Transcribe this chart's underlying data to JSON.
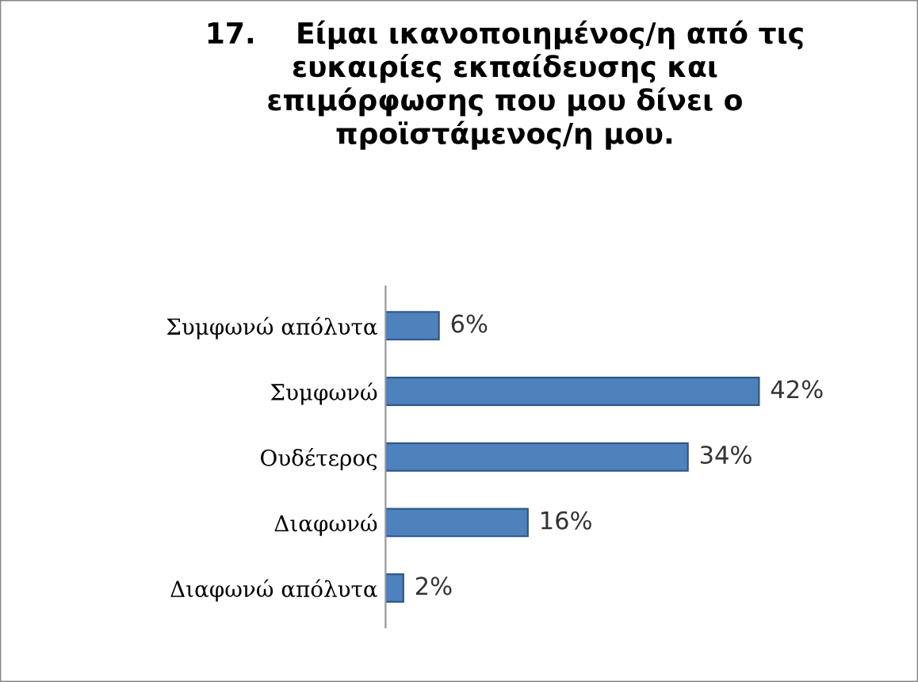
{
  "chart_data": {
    "type": "bar",
    "orientation": "horizontal",
    "title": "17.    Είμαι ικανοποιημένος/η από τις\nευκαιρίες εκπαίδευσης και\nεπιμόρφωσης που μου δίνει ο\nπροϊστάμενος/η μου.",
    "categories": [
      "Συμφωνώ απόλυτα",
      "Συμφωνώ",
      "Ουδέτερος",
      "Διαφωνώ",
      "Διαφωνώ απόλυτα"
    ],
    "values": [
      6,
      42,
      34,
      16,
      2
    ],
    "color": "#4f81bd",
    "value_labels": [
      "6%",
      "42%",
      "34%",
      "16%",
      "2%"
    ],
    "grid": false,
    "legend": false
  }
}
